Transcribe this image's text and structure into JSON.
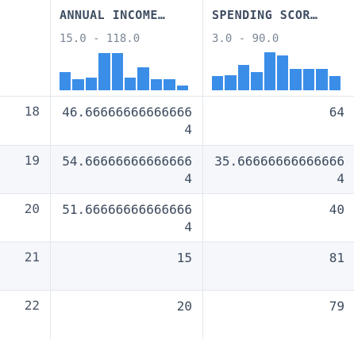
{
  "columns": [
    {
      "title": "ANNUAL INCOME…",
      "range": "15.0 - 118.0",
      "histogram": [
        0.47,
        0.29,
        0.33,
        0.97,
        0.97,
        0.33,
        0.6,
        0.3,
        0.3,
        0.12
      ],
      "color": "#3b8ee8"
    },
    {
      "title": "SPENDING SCOR…",
      "range": "3.0 - 90.0",
      "histogram": [
        0.37,
        0.39,
        0.66,
        0.47,
        0.99,
        0.92,
        0.56,
        0.56,
        0.56,
        0.38
      ],
      "color": "#3b8ee8"
    }
  ],
  "rows": [
    {
      "index": "18",
      "income": "46.666666666666664",
      "spending": "64"
    },
    {
      "index": "19",
      "income": "54.666666666666664",
      "spending": "35.666666666666664"
    },
    {
      "index": "20",
      "income": "51.666666666666664",
      "spending": "40"
    },
    {
      "index": "21",
      "income": "15",
      "spending": "81"
    },
    {
      "index": "22",
      "income": "20",
      "spending": "79"
    }
  ]
}
